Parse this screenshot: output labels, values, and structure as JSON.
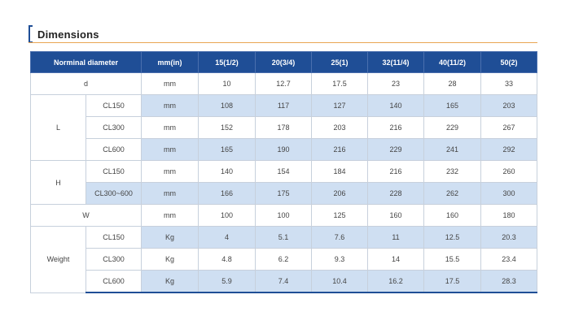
{
  "section_title": "Dimensions",
  "headers": [
    "Norminal diameter",
    "mm(in)",
    "15(1/2)",
    "20(3/4)",
    "25(1)",
    "32(11/4)",
    "40(11/2)",
    "50(2)"
  ],
  "rows": [
    {
      "group": "d",
      "sub": "",
      "unit": "mm",
      "values": [
        "10",
        "12.7",
        "17.5",
        "23",
        "28",
        "33"
      ]
    },
    {
      "group": "L",
      "sub": "CL150",
      "unit": "mm",
      "values": [
        "108",
        "117",
        "127",
        "140",
        "165",
        "203"
      ]
    },
    {
      "group": "L",
      "sub": "CL300",
      "unit": "mm",
      "values": [
        "152",
        "178",
        "203",
        "216",
        "229",
        "267"
      ]
    },
    {
      "group": "L",
      "sub": "CL600",
      "unit": "mm",
      "values": [
        "165",
        "190",
        "216",
        "229",
        "241",
        "292"
      ]
    },
    {
      "group": "H",
      "sub": "CL150",
      "unit": "mm",
      "values": [
        "140",
        "154",
        "184",
        "216",
        "232",
        "260"
      ]
    },
    {
      "group": "H",
      "sub": "CL300~600",
      "unit": "mm",
      "values": [
        "166",
        "175",
        "206",
        "228",
        "262",
        "300"
      ]
    },
    {
      "group": "W",
      "sub": "",
      "unit": "mm",
      "values": [
        "100",
        "100",
        "125",
        "160",
        "160",
        "180"
      ]
    },
    {
      "group": "Weight",
      "sub": "CL150",
      "unit": "Kg",
      "values": [
        "4",
        "5.1",
        "7.6",
        "11",
        "12.5",
        "20.3"
      ]
    },
    {
      "group": "Weight",
      "sub": "CL300",
      "unit": "Kg",
      "values": [
        "4.8",
        "6.2",
        "9.3",
        "14",
        "15.5",
        "23.4"
      ]
    },
    {
      "group": "Weight",
      "sub": "CL600",
      "unit": "Kg",
      "values": [
        "5.9",
        "7.4",
        "10.4",
        "16.2",
        "17.5",
        "28.3"
      ]
    }
  ],
  "colors": {
    "header_bg": "#1f4e96",
    "shade_bg": "#cfdff2",
    "title_rule": "#e9a552"
  }
}
